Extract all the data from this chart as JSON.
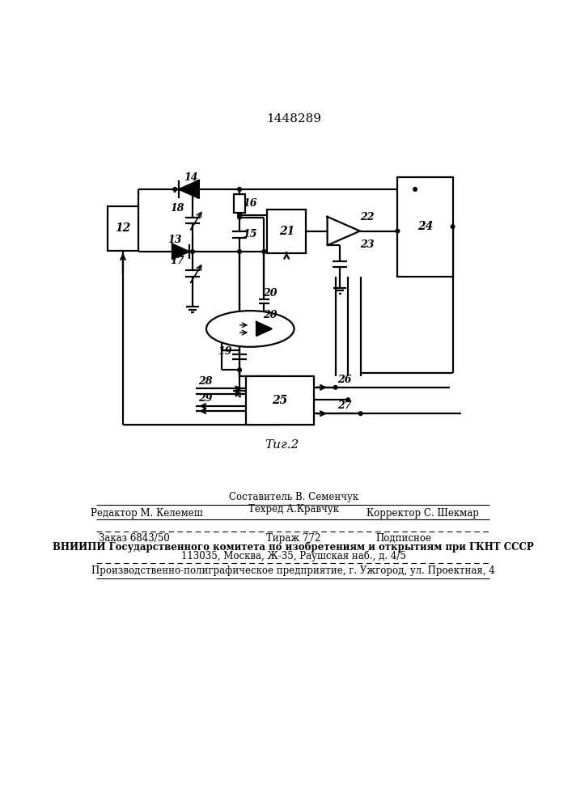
{
  "title": "1448289",
  "bg_color": "#ffffff",
  "line_color": "#000000",
  "lw": 1.6,
  "caption": "Τиг.2",
  "footer": {
    "sestavitel": "Составитель В. Семенчук",
    "redaktor": "Редактор М. Келемеш",
    "tehred": "Техред А.Кравчук",
    "korrektor": "Корректор С. Шекмар",
    "zakaz": "Заказ 6843/50",
    "tirazh": "Тираж 772",
    "podpisnoe": "Подписное",
    "vniip1": "ВНИИПИ Государственного комитета по изобретениям и открытиям при ГКНТ СССР",
    "vniip2": "113035, Москва, Ж-35, Раушская наб., д. 4/5",
    "pp": "Производственно-полиграфическое предприятие, г. Ужгород, ул. Проектная, 4"
  }
}
